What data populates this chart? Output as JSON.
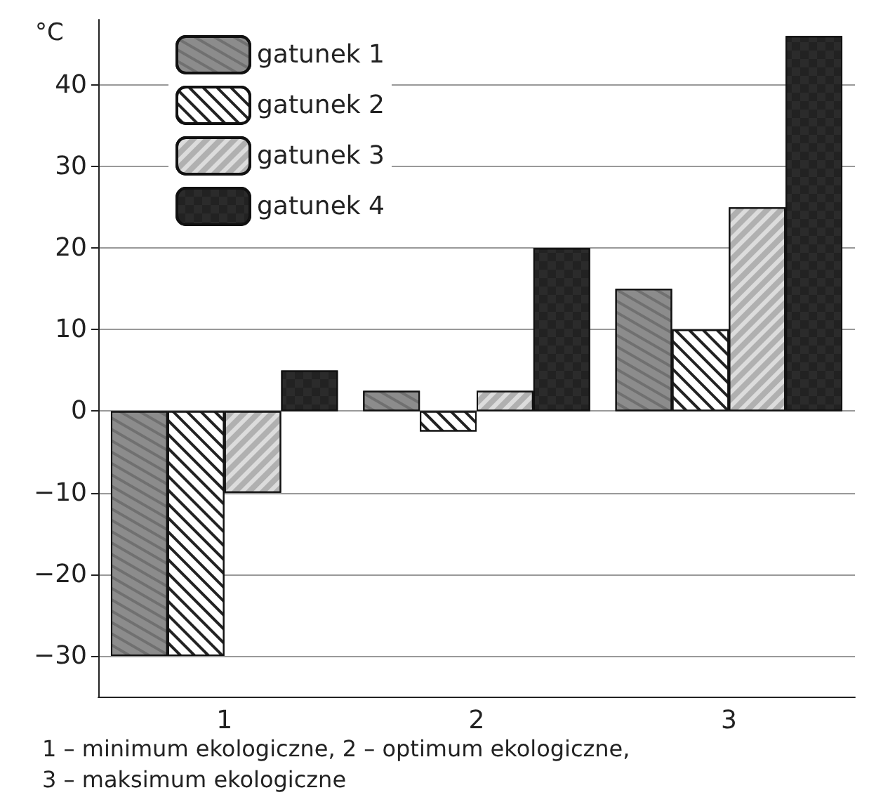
{
  "chart_data": {
    "type": "bar",
    "ylabel": "°C",
    "categories": [
      "1",
      "2",
      "3"
    ],
    "series": [
      {
        "name": "gatunek 1",
        "color": "#8c8c8c",
        "values": [
          -30,
          2.5,
          15
        ]
      },
      {
        "name": "gatunek 2",
        "color": "#ffffff",
        "values": [
          -30,
          -2.5,
          10
        ]
      },
      {
        "name": "gatunek 3",
        "color": "#dcdcdc",
        "values": [
          -10,
          2.5,
          25
        ]
      },
      {
        "name": "gatunek 4",
        "color": "#2b2b2b",
        "values": [
          5,
          20,
          46
        ]
      }
    ],
    "ylim": [
      -35,
      48
    ],
    "yticks": [
      -30,
      -20,
      -10,
      0,
      10,
      20,
      30,
      40
    ],
    "grid": "y",
    "legend": "top left",
    "annotations": [
      "1 – minimum ekologiczne, 2 – optimum ekologiczne,",
      "3 – maksimum ekologiczne"
    ]
  }
}
